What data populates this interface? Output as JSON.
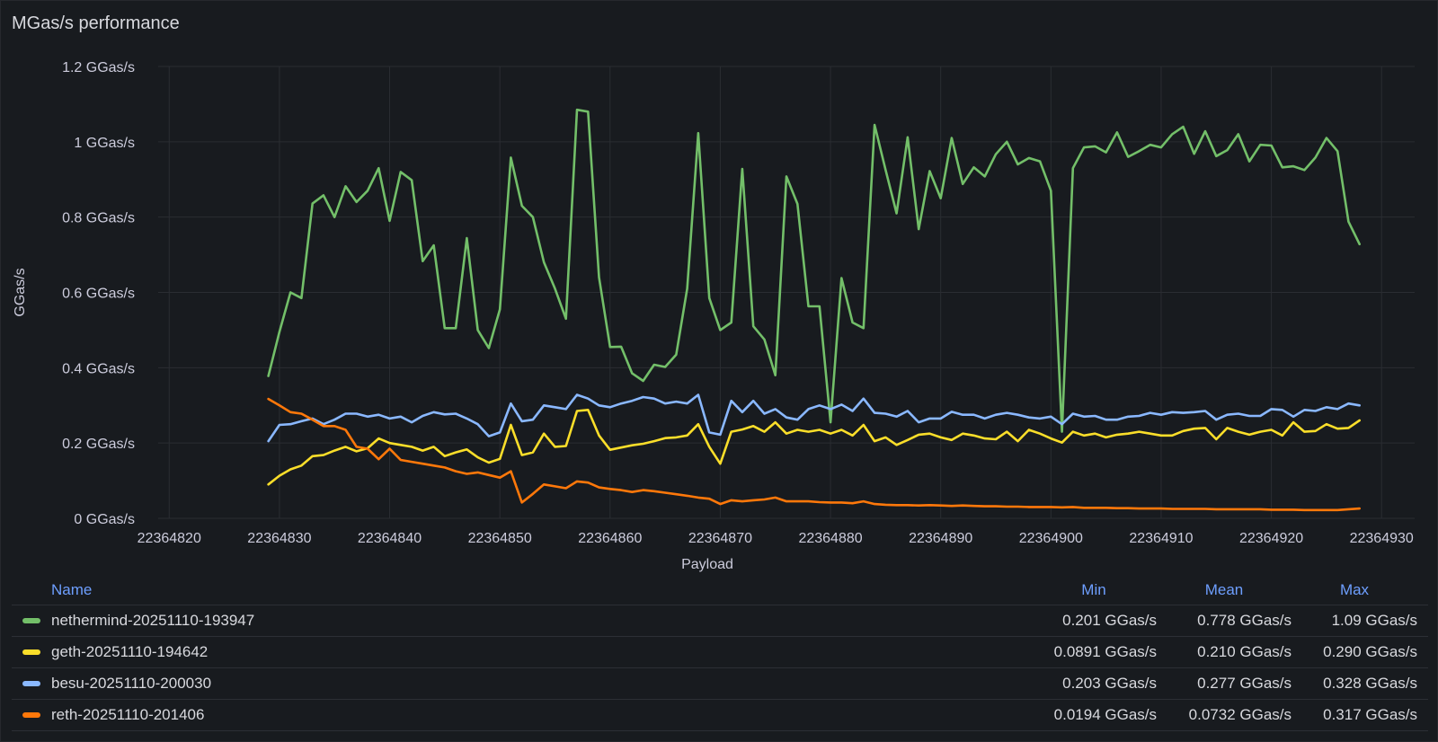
{
  "panel": {
    "title": "MGas/s performance"
  },
  "chart_data": {
    "type": "line",
    "title": "MGas/s performance",
    "xlabel": "Payload",
    "ylabel": "GGas/s",
    "xlim": [
      22364819,
      22364933
    ],
    "ylim": [
      0,
      1.2
    ],
    "x_ticks": [
      22364820,
      22364830,
      22364840,
      22364850,
      22364860,
      22364870,
      22364880,
      22364890,
      22364900,
      22364910,
      22364920,
      22364930
    ],
    "y_ticks": [
      {
        "value": 0,
        "label": "0 GGas/s"
      },
      {
        "value": 0.2,
        "label": "0.2 GGas/s"
      },
      {
        "value": 0.4,
        "label": "0.4 GGas/s"
      },
      {
        "value": 0.6,
        "label": "0.6 GGas/s"
      },
      {
        "value": 0.8,
        "label": "0.8 GGas/s"
      },
      {
        "value": 1,
        "label": "1 GGas/s"
      },
      {
        "value": 1.2,
        "label": "1.2 GGas/s"
      }
    ],
    "x_start": 22364829,
    "x_step": 1,
    "series": [
      {
        "name": "nethermind-20251110-193947",
        "color": "#73bf69",
        "values": [
          0.378,
          0.495,
          0.6,
          0.585,
          0.836,
          0.858,
          0.8,
          0.882,
          0.84,
          0.87,
          0.93,
          0.79,
          0.92,
          0.898,
          0.683,
          0.725,
          0.505,
          0.505,
          0.744,
          0.5,
          0.452,
          0.555,
          0.958,
          0.83,
          0.8,
          0.68,
          0.61,
          0.53,
          1.085,
          1.08,
          0.64,
          0.455,
          0.456,
          0.385,
          0.365,
          0.408,
          0.402,
          0.435,
          0.61,
          1.023,
          0.585,
          0.5,
          0.52,
          0.928,
          0.51,
          0.475,
          0.38,
          0.908,
          0.835,
          0.563,
          0.563,
          0.255,
          0.638,
          0.52,
          0.505,
          1.045,
          0.925,
          0.81,
          1.012,
          0.768,
          0.922,
          0.85,
          1.01,
          0.888,
          0.932,
          0.908,
          0.967,
          1.0,
          0.94,
          0.957,
          0.948,
          0.87,
          0.23,
          0.93,
          0.985,
          0.988,
          0.972,
          1.025,
          0.96,
          0.975,
          0.992,
          0.985,
          1.02,
          1.04,
          0.968,
          1.028,
          0.962,
          0.978,
          1.02,
          0.948,
          0.992,
          0.99,
          0.932,
          0.935,
          0.925,
          0.958,
          1.01,
          0.975,
          0.788,
          0.728
        ]
      },
      {
        "name": "geth-20251110-194642",
        "color": "#fade2a",
        "values": [
          0.09,
          0.113,
          0.13,
          0.14,
          0.165,
          0.168,
          0.18,
          0.19,
          0.178,
          0.186,
          0.212,
          0.2,
          0.195,
          0.19,
          0.18,
          0.19,
          0.165,
          0.175,
          0.183,
          0.162,
          0.148,
          0.158,
          0.248,
          0.168,
          0.175,
          0.225,
          0.19,
          0.192,
          0.285,
          0.288,
          0.22,
          0.182,
          0.188,
          0.194,
          0.198,
          0.205,
          0.213,
          0.215,
          0.22,
          0.25,
          0.19,
          0.145,
          0.23,
          0.236,
          0.245,
          0.23,
          0.255,
          0.225,
          0.235,
          0.23,
          0.235,
          0.225,
          0.235,
          0.22,
          0.248,
          0.205,
          0.215,
          0.195,
          0.208,
          0.222,
          0.225,
          0.215,
          0.208,
          0.225,
          0.22,
          0.212,
          0.21,
          0.23,
          0.205,
          0.235,
          0.225,
          0.212,
          0.201,
          0.23,
          0.22,
          0.225,
          0.215,
          0.222,
          0.225,
          0.23,
          0.225,
          0.22,
          0.22,
          0.232,
          0.238,
          0.24,
          0.21,
          0.24,
          0.23,
          0.222,
          0.23,
          0.235,
          0.22,
          0.255,
          0.23,
          0.232,
          0.25,
          0.238,
          0.24,
          0.26
        ]
      },
      {
        "name": "besu-20251110-200030",
        "color": "#8ab8ff",
        "values": [
          0.205,
          0.248,
          0.25,
          0.258,
          0.265,
          0.25,
          0.262,
          0.278,
          0.278,
          0.27,
          0.275,
          0.265,
          0.27,
          0.255,
          0.272,
          0.282,
          0.276,
          0.278,
          0.265,
          0.25,
          0.218,
          0.228,
          0.305,
          0.258,
          0.262,
          0.3,
          0.295,
          0.29,
          0.328,
          0.318,
          0.3,
          0.295,
          0.305,
          0.312,
          0.322,
          0.318,
          0.305,
          0.31,
          0.305,
          0.328,
          0.228,
          0.222,
          0.312,
          0.282,
          0.312,
          0.278,
          0.29,
          0.268,
          0.262,
          0.29,
          0.3,
          0.29,
          0.302,
          0.285,
          0.318,
          0.28,
          0.278,
          0.27,
          0.285,
          0.255,
          0.265,
          0.265,
          0.283,
          0.275,
          0.275,
          0.265,
          0.275,
          0.28,
          0.275,
          0.268,
          0.265,
          0.27,
          0.25,
          0.278,
          0.27,
          0.272,
          0.262,
          0.262,
          0.27,
          0.272,
          0.28,
          0.275,
          0.282,
          0.28,
          0.282,
          0.285,
          0.262,
          0.275,
          0.278,
          0.272,
          0.272,
          0.29,
          0.288,
          0.27,
          0.288,
          0.285,
          0.295,
          0.29,
          0.305,
          0.3
        ]
      },
      {
        "name": "reth-20251110-201406",
        "color": "#ff780a",
        "values": [
          0.317,
          0.3,
          0.282,
          0.278,
          0.262,
          0.245,
          0.245,
          0.235,
          0.19,
          0.185,
          0.157,
          0.185,
          0.155,
          0.15,
          0.145,
          0.14,
          0.135,
          0.125,
          0.118,
          0.122,
          0.115,
          0.108,
          0.125,
          0.042,
          0.065,
          0.09,
          0.085,
          0.08,
          0.098,
          0.095,
          0.082,
          0.078,
          0.075,
          0.07,
          0.075,
          0.072,
          0.068,
          0.064,
          0.06,
          0.055,
          0.052,
          0.038,
          0.048,
          0.045,
          0.048,
          0.05,
          0.055,
          0.045,
          0.045,
          0.045,
          0.043,
          0.042,
          0.042,
          0.04,
          0.045,
          0.038,
          0.036,
          0.035,
          0.035,
          0.034,
          0.035,
          0.034,
          0.033,
          0.034,
          0.033,
          0.032,
          0.032,
          0.031,
          0.031,
          0.03,
          0.03,
          0.03,
          0.029,
          0.03,
          0.028,
          0.028,
          0.028,
          0.027,
          0.027,
          0.026,
          0.026,
          0.026,
          0.025,
          0.025,
          0.025,
          0.025,
          0.024,
          0.024,
          0.024,
          0.024,
          0.024,
          0.023,
          0.023,
          0.023,
          0.022,
          0.022,
          0.022,
          0.022,
          0.024,
          0.026
        ]
      }
    ]
  },
  "legend": {
    "headers": {
      "name": "Name",
      "min": "Min",
      "mean": "Mean",
      "max": "Max"
    },
    "rows": [
      {
        "name": "nethermind-20251110-193947",
        "color": "#73bf69",
        "min": "0.201 GGas/s",
        "mean": "0.778 GGas/s",
        "max": "1.09 GGas/s"
      },
      {
        "name": "geth-20251110-194642",
        "color": "#fade2a",
        "min": "0.0891 GGas/s",
        "mean": "0.210 GGas/s",
        "max": "0.290 GGas/s"
      },
      {
        "name": "besu-20251110-200030",
        "color": "#8ab8ff",
        "min": "0.203 GGas/s",
        "mean": "0.277 GGas/s",
        "max": "0.328 GGas/s"
      },
      {
        "name": "reth-20251110-201406",
        "color": "#ff780a",
        "min": "0.0194 GGas/s",
        "mean": "0.0732 GGas/s",
        "max": "0.317 GGas/s"
      }
    ]
  }
}
